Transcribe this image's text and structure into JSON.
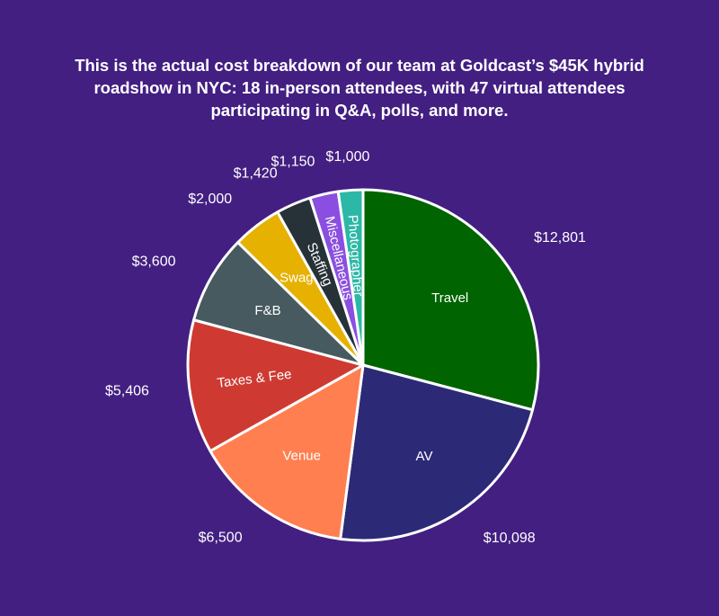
{
  "title_lines": [
    "This is the actual cost breakdown of our team at Goldcast’s $45K hybrid",
    "roadshow in NYC: 18 in-person attendees, with 47 virtual attendees",
    "participating in Q&A, polls, and more."
  ],
  "chart_data": {
    "type": "pie",
    "title": "This is the actual cost breakdown of our team at Goldcast’s $45K hybrid roadshow in NYC: 18 in-person attendees, with 47 virtual attendees participating in Q&A, polls, and more.",
    "start_angle_deg": 0,
    "direction": "clockwise",
    "slices": [
      {
        "label": "Travel",
        "value": 12801,
        "value_label": "$12,801",
        "color": "#006400",
        "label_rotation": "horizontal"
      },
      {
        "label": "AV",
        "value": 10098,
        "value_label": "$10,098",
        "color": "#2c2a76",
        "label_rotation": "horizontal"
      },
      {
        "label": "Venue",
        "value": 6500,
        "value_label": "$6,500",
        "color": "#ff7f50",
        "label_rotation": "horizontal"
      },
      {
        "label": "Taxes & Fee",
        "value": 5406,
        "value_label": "$5,406",
        "color": "#ce3a32",
        "label_rotation": "radial"
      },
      {
        "label": "F&B",
        "value": 3600,
        "value_label": "$3,600",
        "color": "#465a60",
        "label_rotation": "horizontal"
      },
      {
        "label": "Swag",
        "value": 2000,
        "value_label": "$2,000",
        "color": "#e6b100",
        "label_rotation": "horizontal"
      },
      {
        "label": "Staffing",
        "value": 1420,
        "value_label": "$1,420",
        "color": "#263238",
        "label_rotation": "radial"
      },
      {
        "label": "Miscellaneous",
        "value": 1150,
        "value_label": "$1,150",
        "color": "#8a4fe0",
        "label_rotation": "radial"
      },
      {
        "label": "Photographer",
        "value": 1000,
        "value_label": "$1,000",
        "color": "#2bb8a6",
        "label_rotation": "radial"
      }
    ]
  }
}
